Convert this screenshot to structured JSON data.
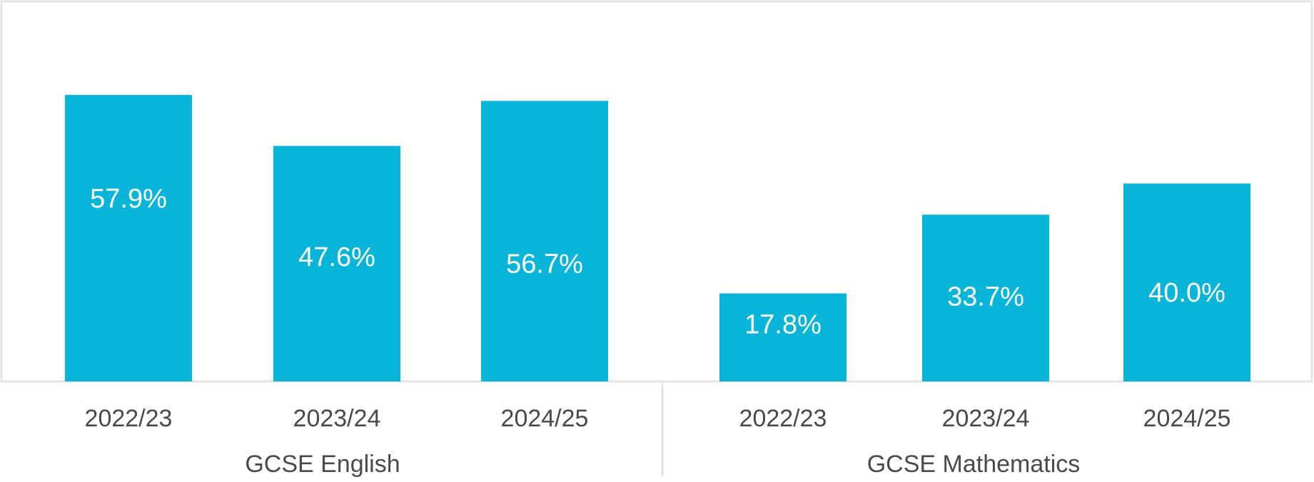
{
  "chart_data": {
    "type": "bar",
    "title": "",
    "xlabel": "",
    "ylabel": "",
    "ylim": [
      0,
      67
    ],
    "grid": false,
    "legend": "none",
    "bar_color": "#08b5d9",
    "frame_color": "#e3e3e3",
    "groups": [
      {
        "name": "GCSE English",
        "categories": [
          "2022/23",
          "2023/24",
          "2024/25"
        ],
        "values": [
          57.9,
          47.6,
          56.7
        ],
        "labels": [
          "57.9%",
          "47.6%",
          "56.7%"
        ]
      },
      {
        "name": "GCSE Mathematics",
        "categories": [
          "2022/23",
          "2023/24",
          "2024/25"
        ],
        "values": [
          17.8,
          33.7,
          40.0
        ],
        "labels": [
          "17.8%",
          "33.7%",
          "40.0%"
        ]
      }
    ]
  }
}
